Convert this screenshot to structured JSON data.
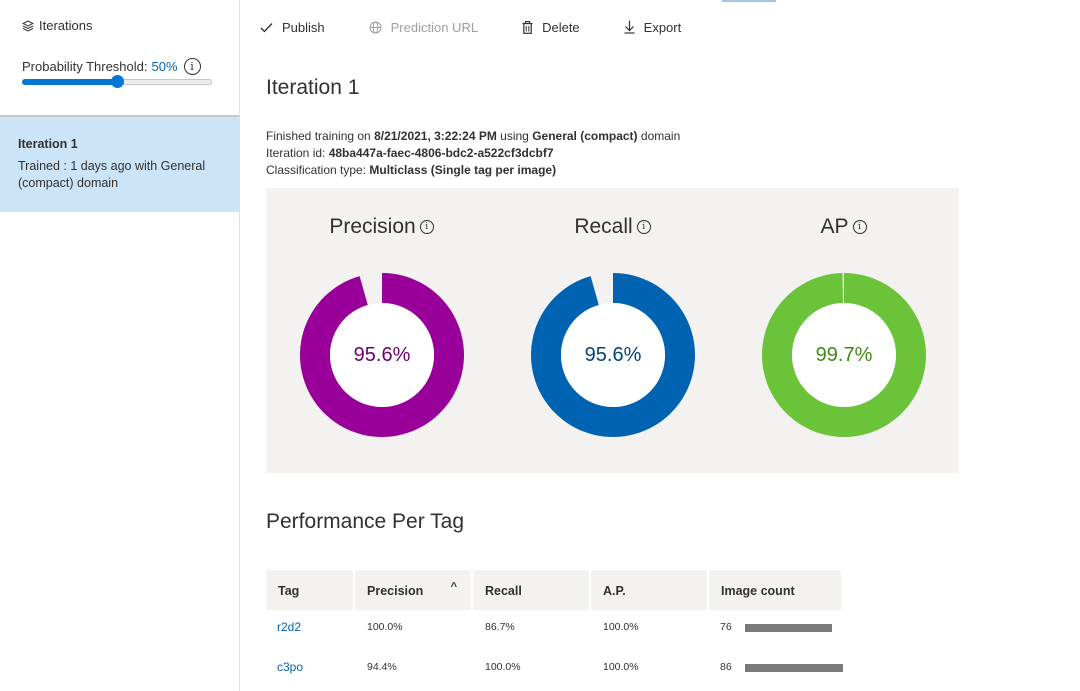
{
  "sidebar": {
    "title": "Iterations",
    "threshold_label": "Probability Threshold:",
    "threshold_value": "50%",
    "threshold_fraction": 0.5,
    "iteration": {
      "name": "Iteration 1",
      "description": "Trained : 1 days ago with General (compact) domain"
    }
  },
  "toolbar": {
    "publish": "Publish",
    "prediction_url": "Prediction URL",
    "delete": "Delete",
    "export": "Export"
  },
  "main": {
    "title": "Iteration 1",
    "meta": {
      "finished_prefix": "Finished training on ",
      "finished_date": "8/21/2021, 3:22:24 PM",
      "using": " using ",
      "domain_name": "General (compact)",
      "domain_suffix": " domain",
      "iteration_id_label": "Iteration id: ",
      "iteration_id": "48ba447a-faec-4806-bdc2-a522cf3dcbf7",
      "classification_label": "Classification type: ",
      "classification": "Multiclass (Single tag per image)"
    },
    "metrics": [
      {
        "label": "Precision",
        "value": "95.6%",
        "fraction": 0.956,
        "color": "#990099",
        "text_color": "#6b006b"
      },
      {
        "label": "Recall",
        "value": "95.6%",
        "fraction": 0.956,
        "color": "#0063b1",
        "text_color": "#00457a"
      },
      {
        "label": "AP",
        "value": "99.7%",
        "fraction": 0.997,
        "color": "#6bc33a",
        "text_color": "#3d8a14"
      }
    ],
    "performance_title": "Performance Per Tag",
    "table": {
      "headers": [
        "Tag",
        "Precision",
        "Recall",
        "A.P.",
        "Image count"
      ],
      "rows": [
        {
          "tag": "r2d2",
          "precision": "100.0%",
          "recall": "86.7%",
          "ap": "100.0%",
          "count": "76",
          "count_value": 76
        },
        {
          "tag": "c3po",
          "precision": "94.4%",
          "recall": "100.0%",
          "ap": "100.0%",
          "count": "86",
          "count_value": 86
        }
      ]
    }
  },
  "colors": {
    "accent": "#0078d4",
    "selected_bg": "#cce4f7",
    "panel_bg": "#f3f2f1"
  }
}
